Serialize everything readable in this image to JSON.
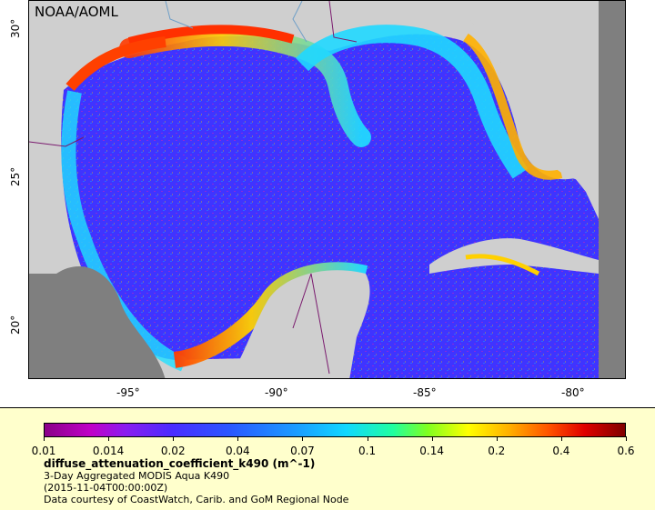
{
  "map": {
    "credit": "NOAA/AOML",
    "lat_ticks": [
      "30°",
      "25°",
      "20°"
    ],
    "lon_ticks": [
      "-95°",
      "-90°",
      "-85°",
      "-80°"
    ],
    "colors": {
      "land": "#cfcfcf",
      "no_data": "#7f7f7f",
      "borders": "#7a1a6e",
      "rivers": "#6f9fc8"
    }
  },
  "legend": {
    "ticks": [
      "0.01",
      "0.014",
      "0.02",
      "0.04",
      "0.07",
      "0.1",
      "0.14",
      "0.2",
      "0.4",
      "0.6"
    ],
    "variable": "diffuse_attenuation_coefficient_k490 (m^-1)",
    "description": "3-Day Aggregated MODIS Aqua K490",
    "time": "(2015-11-04T00:00:00Z)",
    "source": "Data courtesy of CoastWatch, Carib. and GoM Regional Node"
  }
}
